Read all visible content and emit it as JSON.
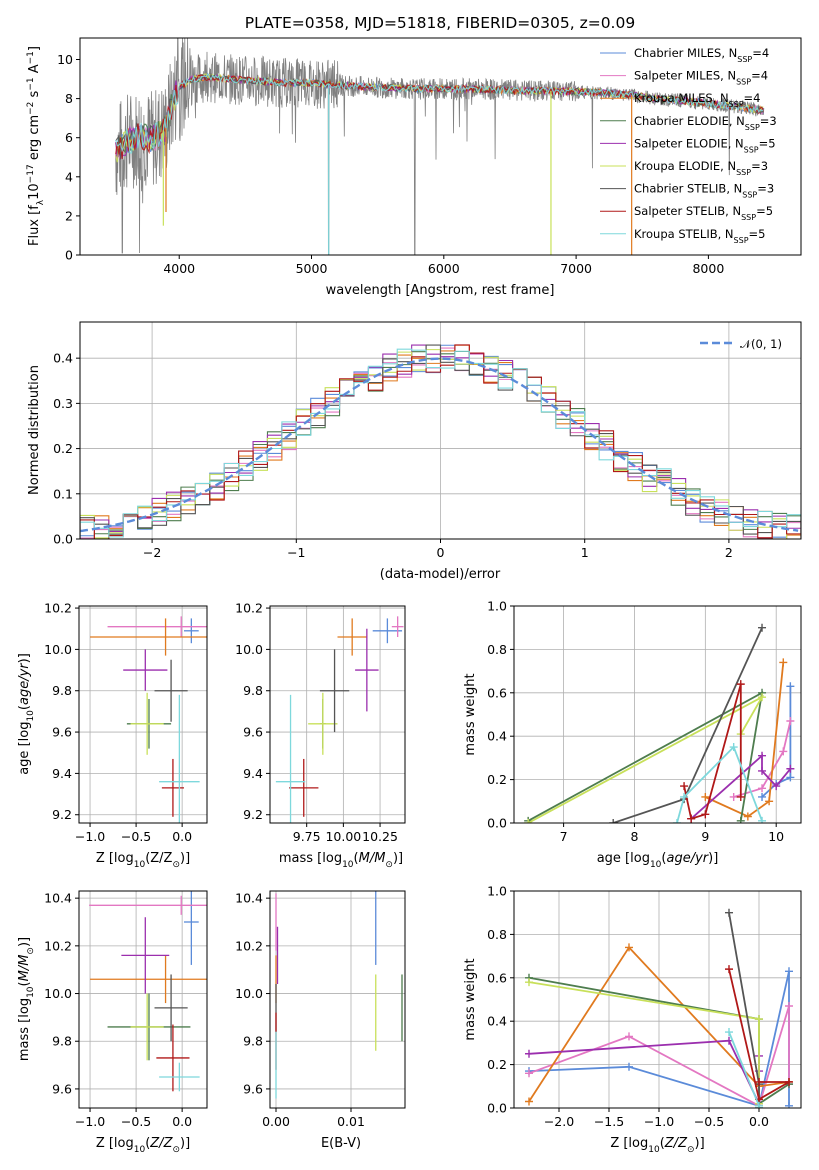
{
  "title": "PLATE=0358, MJD=51818, FIBERID=0305, z=0.09",
  "colors": {
    "cm": "#5B8BD9",
    "sm": "#E377C2",
    "km": "#E07A1F",
    "ce": "#4E7D4E",
    "se": "#9B2FAE",
    "ke": "#C8E05A",
    "cs": "#555555",
    "ss": "#B01818",
    "ks": "#7ED8DC",
    "data": "#808080",
    "normal": "#5B8BD9"
  },
  "models": [
    {
      "key": "cm",
      "name": "Chabrier MILES, N",
      "sub": "SSP",
      "n": "=4"
    },
    {
      "key": "sm",
      "name": "Salpeter MILES, N",
      "sub": "SSP",
      "n": "=4"
    },
    {
      "key": "km",
      "name": "Kroupa MILES, N",
      "sub": "SSP",
      "n": "=4"
    },
    {
      "key": "ce",
      "name": "Chabrier ELODIE, N",
      "sub": "SSP",
      "n": "=3"
    },
    {
      "key": "se",
      "name": "Salpeter ELODIE, N",
      "sub": "SSP",
      "n": "=5"
    },
    {
      "key": "ke",
      "name": "Kroupa ELODIE, N",
      "sub": "SSP",
      "n": "=3"
    },
    {
      "key": "cs",
      "name": "Chabrier STELIB, N",
      "sub": "SSP",
      "n": "=3"
    },
    {
      "key": "ss",
      "name": "Salpeter STELIB, N",
      "sub": "SSP",
      "n": "=5"
    },
    {
      "key": "ks",
      "name": "Kroupa STELIB, N",
      "sub": "SSP",
      "n": "=5"
    }
  ],
  "chart_data": [
    {
      "id": "spectrum",
      "type": "line",
      "xlabel": "wavelength [Angstrom, rest frame]",
      "ylabel": "Flux [f",
      "ylabel_sub": "λ",
      "ylabel_mid": "10",
      "ylabel_exp1": "−17",
      "ylabel_mid2": " erg cm",
      "ylabel_exp2": "−2",
      "ylabel_mid3": " s",
      "ylabel_exp3": "−1",
      "ylabel_mid4": " A",
      "ylabel_exp4": "−1",
      "ylabel_end": "]",
      "xlim": [
        3250,
        8700
      ],
      "ylim": [
        0,
        11.1
      ],
      "xticks": [
        4000,
        5000,
        6000,
        7000,
        8000
      ],
      "yticks": [
        0,
        2,
        4,
        6,
        8,
        10
      ],
      "series_continuum": {
        "x": [
          3520,
          3600,
          3700,
          3800,
          3900,
          3950,
          4000,
          4100,
          4200,
          4400,
          4600,
          4800,
          5000,
          5200,
          5400,
          5600,
          5800,
          6000,
          6200,
          6400,
          6600,
          6800,
          7000,
          7200,
          7400,
          7600,
          7800,
          8000,
          8200,
          8400
        ],
        "y": [
          5.2,
          5.8,
          6.1,
          5.9,
          6.5,
          7.9,
          8.6,
          9.0,
          9.1,
          9.0,
          8.9,
          8.8,
          8.8,
          8.7,
          8.6,
          8.55,
          8.5,
          8.5,
          8.5,
          8.45,
          8.4,
          8.4,
          8.35,
          8.3,
          8.2,
          8.0,
          7.9,
          7.75,
          7.6,
          7.4
        ]
      }
    },
    {
      "id": "residuals",
      "type": "line",
      "xlabel": "(data-model)/error",
      "ylabel": "Normed distribution",
      "legend": "𝒩(0, 1)",
      "xlim": [
        -2.5,
        2.5
      ],
      "ylim": [
        0,
        0.48
      ],
      "xticks": [
        -2,
        -1,
        0,
        1,
        2
      ],
      "yticks": [
        0.0,
        0.1,
        0.2,
        0.3,
        0.4
      ]
    },
    {
      "id": "age_vs_Z",
      "type": "scatter",
      "xlabel": "Z [log",
      "xlabel_sub": "10",
      "xlabel_end": "(Z/Z",
      "xlabel_sun": "⊙",
      "xlabel_close": ")]",
      "ylabel": "age  [log10(age/yr)]",
      "xlim": [
        -1.12,
        0.27
      ],
      "ylim": [
        9.16,
        10.21
      ],
      "xticks": [
        -1.0,
        -0.5,
        0.0
      ],
      "yticks": [
        9.2,
        9.4,
        9.6,
        9.8,
        10.0,
        10.2
      ],
      "points": [
        {
          "key": "cm",
          "x": 0.1,
          "y": 10.09,
          "xerr": 0.08,
          "yerr": 0.06
        },
        {
          "key": "sm",
          "x": -0.01,
          "y": 10.11,
          "xerr": 0.8,
          "yerr": 0.05
        },
        {
          "key": "km",
          "x": -0.18,
          "y": 10.06,
          "xerr": 0.82,
          "yerr": 0.09
        },
        {
          "key": "ce",
          "x": -0.36,
          "y": 9.64,
          "xerr": 0.24,
          "yerr": 0.12
        },
        {
          "key": "se",
          "x": -0.4,
          "y": 9.9,
          "xerr": 0.24,
          "yerr": 0.1
        },
        {
          "key": "ke",
          "x": -0.38,
          "y": 9.64,
          "xerr": 0.18,
          "yerr": 0.15
        },
        {
          "key": "cs",
          "x": -0.12,
          "y": 9.8,
          "xerr": 0.18,
          "yerr": 0.15
        },
        {
          "key": "ss",
          "x": -0.1,
          "y": 9.33,
          "xerr": 0.12,
          "yerr": 0.14
        },
        {
          "key": "ks",
          "x": -0.03,
          "y": 9.36,
          "xerr": 0.22,
          "yerr": 0.42
        }
      ]
    },
    {
      "id": "age_vs_mass",
      "type": "scatter",
      "xlabel": "mass [log",
      "ylabel": "",
      "xlim": [
        9.5,
        10.42
      ],
      "ylim": [
        9.16,
        10.21
      ],
      "xticks": [
        9.75,
        10.0,
        10.25
      ],
      "xticklabels": [
        "9.75",
        "10.00",
        "10.25"
      ],
      "yticks": [
        9.2,
        9.4,
        9.6,
        9.8,
        10.0,
        10.2
      ],
      "points": [
        {
          "key": "cm",
          "x": 10.3,
          "y": 10.09,
          "xerr": 0.1,
          "yerr": 0.06
        },
        {
          "key": "sm",
          "x": 10.37,
          "y": 10.11,
          "xerr": 0.04,
          "yerr": 0.05
        },
        {
          "key": "km",
          "x": 10.06,
          "y": 10.06,
          "xerr": 0.1,
          "yerr": 0.09
        },
        {
          "key": "ce",
          "x": 9.86,
          "y": 9.64,
          "xerr": 0.02,
          "yerr": 0.12
        },
        {
          "key": "se",
          "x": 10.16,
          "y": 9.9,
          "xerr": 0.08,
          "yerr": 0.2
        },
        {
          "key": "ke",
          "x": 9.86,
          "y": 9.64,
          "xerr": 0.1,
          "yerr": 0.15
        },
        {
          "key": "cs",
          "x": 9.94,
          "y": 9.8,
          "xerr": 0.1,
          "yerr": 0.2
        },
        {
          "key": "ss",
          "x": 9.73,
          "y": 9.33,
          "xerr": 0.1,
          "yerr": 0.14
        },
        {
          "key": "ks",
          "x": 9.64,
          "y": 9.36,
          "xerr": 0.1,
          "yerr": 0.42
        }
      ]
    },
    {
      "id": "massweight_vs_age",
      "type": "line",
      "xlabel": "age  [log",
      "ylabel": "mass weight",
      "xlim": [
        6.3,
        10.35
      ],
      "ylim": [
        0,
        1.0
      ],
      "xticks": [
        7,
        8,
        9,
        10
      ],
      "yticks": [
        0.0,
        0.2,
        0.4,
        0.6,
        0.8,
        1.0
      ],
      "series": [
        {
          "key": "cm",
          "x": [
            9.8,
            10.0,
            10.2,
            10.2
          ],
          "y": [
            0.12,
            0.18,
            0.21,
            0.63
          ]
        },
        {
          "key": "sm",
          "x": [
            9.4,
            9.8,
            10.1,
            10.2
          ],
          "y": [
            0.12,
            0.16,
            0.33,
            0.47
          ]
        },
        {
          "key": "km",
          "x": [
            9.0,
            9.6,
            9.9,
            10.1
          ],
          "y": [
            0.12,
            0.03,
            0.1,
            0.74
          ]
        },
        {
          "key": "ce",
          "x": [
            6.5,
            9.8,
            9.5
          ],
          "y": [
            0.01,
            0.6,
            0.01
          ]
        },
        {
          "key": "se",
          "x": [
            8.8,
            9.8,
            9.8,
            10.0,
            10.2
          ],
          "y": [
            0.02,
            0.31,
            0.24,
            0.17,
            0.25
          ]
        },
        {
          "key": "ke",
          "x": [
            6.5,
            9.8,
            9.5
          ],
          "y": [
            0.0,
            0.58,
            0.41
          ]
        },
        {
          "key": "cs",
          "x": [
            7.7,
            8.7,
            9.8
          ],
          "y": [
            0.0,
            0.11,
            0.9
          ]
        },
        {
          "key": "ss",
          "x": [
            8.7,
            8.8,
            9.0,
            9.5,
            9.5
          ],
          "y": [
            0.17,
            0.02,
            0.04,
            0.64,
            0.12
          ]
        },
        {
          "key": "ks",
          "x": [
            8.6,
            8.7,
            9.4,
            9.8
          ],
          "y": [
            0.0,
            0.12,
            0.35,
            0.01
          ]
        }
      ]
    },
    {
      "id": "mass_vs_Z",
      "type": "scatter",
      "xlabel": "Z [log",
      "ylabel": "mass [log",
      "xlim": [
        -1.12,
        0.27
      ],
      "ylim": [
        9.52,
        10.43
      ],
      "xticks": [
        -1.0,
        -0.5,
        0.0
      ],
      "yticks": [
        9.6,
        9.8,
        10.0,
        10.2,
        10.4
      ],
      "points": [
        {
          "key": "cm",
          "x": 0.1,
          "y": 10.3,
          "xerr": 0.08,
          "yerr": 0.18
        },
        {
          "key": "sm",
          "x": -0.01,
          "y": 10.37,
          "xerr": 1.0,
          "yerr": 0.04
        },
        {
          "key": "km",
          "x": -0.18,
          "y": 10.06,
          "xerr": 0.82,
          "yerr": 0.1
        },
        {
          "key": "ce",
          "x": -0.36,
          "y": 9.86,
          "xerr": 0.45,
          "yerr": 0.14
        },
        {
          "key": "se",
          "x": -0.4,
          "y": 10.16,
          "xerr": 0.26,
          "yerr": 0.16
        },
        {
          "key": "ke",
          "x": -0.38,
          "y": 9.86,
          "xerr": 0.18,
          "yerr": 0.14
        },
        {
          "key": "cs",
          "x": -0.12,
          "y": 9.94,
          "xerr": 0.18,
          "yerr": 0.14
        },
        {
          "key": "ss",
          "x": -0.1,
          "y": 9.73,
          "xerr": 0.18,
          "yerr": 0.14
        },
        {
          "key": "ks",
          "x": -0.03,
          "y": 9.65,
          "xerr": 0.22,
          "yerr": 0.06
        }
      ]
    },
    {
      "id": "mass_vs_ebv",
      "type": "scatter",
      "xlabel": "E(B-V)",
      "ylabel": "",
      "xlim": [
        -0.0008,
        0.0172
      ],
      "ylim": [
        9.52,
        10.43
      ],
      "xticks": [
        0.0,
        0.01
      ],
      "xticklabels": [
        "0.00",
        "0.01"
      ],
      "yticks": [
        9.6,
        9.8,
        10.0,
        10.2,
        10.4
      ],
      "points": [
        {
          "key": "cm",
          "x": 0.0133,
          "y": 10.3,
          "yerr": 0.18
        },
        {
          "key": "sm",
          "x": 0.0,
          "y": 10.3,
          "yerr": 0.12
        },
        {
          "key": "km",
          "x": 0.0,
          "y": 10.06,
          "yerr": 0.1
        },
        {
          "key": "ce",
          "x": 0.0168,
          "y": 9.94,
          "yerr": 0.14
        },
        {
          "key": "se",
          "x": 0.0002,
          "y": 10.16,
          "yerr": 0.12
        },
        {
          "key": "ke",
          "x": 0.0133,
          "y": 9.92,
          "yerr": 0.16
        },
        {
          "key": "cs",
          "x": 0.0,
          "y": 9.94,
          "yerr": 0.1
        },
        {
          "key": "ss",
          "x": 0.0,
          "y": 9.8,
          "yerr": 0.12
        },
        {
          "key": "ks",
          "x": 0.0,
          "y": 9.7,
          "yerr": 0.14
        }
      ]
    },
    {
      "id": "massweight_vs_Z",
      "type": "line",
      "xlabel": "Z [log",
      "ylabel": "mass weight",
      "xlim": [
        -2.45,
        0.42
      ],
      "ylim": [
        0,
        1.0
      ],
      "xticks": [
        -2.0,
        -1.5,
        -1.0,
        -0.5,
        0.0
      ],
      "yticks": [
        0.0,
        0.2,
        0.4,
        0.6,
        0.8,
        1.0
      ],
      "series": [
        {
          "key": "cm",
          "x": [
            -2.3,
            -1.3,
            0.0,
            0.3,
            0.3
          ],
          "y": [
            0.17,
            0.19,
            0.01,
            0.63,
            0.01
          ]
        },
        {
          "key": "sm",
          "x": [
            -2.3,
            -1.3,
            0.0,
            0.3,
            0.3
          ],
          "y": [
            0.16,
            0.33,
            0.01,
            0.47,
            0.11
          ]
        },
        {
          "key": "km",
          "x": [
            -2.3,
            -1.3,
            0.0,
            0.3
          ],
          "y": [
            0.03,
            0.74,
            0.1,
            0.12
          ]
        },
        {
          "key": "ce",
          "x": [
            -2.3,
            0.0,
            0.0,
            0.3
          ],
          "y": [
            0.6,
            0.41,
            0.02,
            0.11
          ]
        },
        {
          "key": "se",
          "x": [
            -2.3,
            -0.3,
            0.0,
            0.0,
            -0.0
          ],
          "y": [
            0.25,
            0.31,
            0.02,
            0.24,
            0.17
          ]
        },
        {
          "key": "ke",
          "x": [
            -2.3,
            0.0,
            0.0
          ],
          "y": [
            0.58,
            0.41,
            0.02
          ]
        },
        {
          "key": "cs",
          "x": [
            -0.3,
            0.0,
            0.0
          ],
          "y": [
            0.9,
            0.11,
            0.0
          ]
        },
        {
          "key": "ss",
          "x": [
            -0.3,
            0.0,
            0.3,
            0.0
          ],
          "y": [
            0.64,
            0.04,
            0.12,
            0.12
          ]
        },
        {
          "key": "ks",
          "x": [
            -0.3,
            0.0,
            0.0
          ],
          "y": [
            0.35,
            0.01,
            0.0
          ]
        }
      ]
    }
  ]
}
